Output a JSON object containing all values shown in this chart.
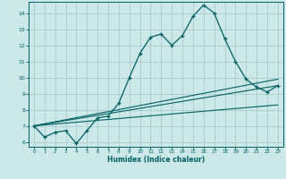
{
  "xlabel": "Humidex (Indice chaleur)",
  "bg_color": "#cce8e8",
  "grid_color": "#aacccc",
  "line_color": "#006060",
  "xlim": [
    -0.5,
    23.5
  ],
  "ylim": [
    5.7,
    14.7
  ],
  "yticks": [
    6,
    7,
    8,
    9,
    10,
    11,
    12,
    13,
    14
  ],
  "xticks": [
    0,
    1,
    2,
    3,
    4,
    5,
    6,
    7,
    8,
    9,
    10,
    11,
    12,
    13,
    14,
    15,
    16,
    17,
    18,
    19,
    20,
    21,
    22,
    23
  ],
  "line1_x": [
    0,
    1,
    2,
    3,
    4,
    5,
    6,
    7,
    8,
    9,
    10,
    11,
    12,
    13,
    14,
    15,
    16,
    17,
    18,
    19,
    20,
    21,
    22,
    23
  ],
  "line1_y": [
    7.0,
    6.3,
    6.6,
    6.7,
    5.9,
    6.7,
    7.5,
    7.6,
    8.4,
    10.0,
    11.5,
    12.5,
    12.7,
    12.0,
    12.6,
    13.8,
    14.5,
    14.0,
    12.4,
    11.0,
    9.9,
    9.4,
    9.1,
    9.5
  ],
  "line2_x": [
    0,
    23
  ],
  "line2_y": [
    7.0,
    9.5
  ],
  "line3_x": [
    0,
    23
  ],
  "line3_y": [
    7.0,
    8.3
  ],
  "line4_x": [
    0,
    23
  ],
  "line4_y": [
    7.0,
    9.9
  ]
}
